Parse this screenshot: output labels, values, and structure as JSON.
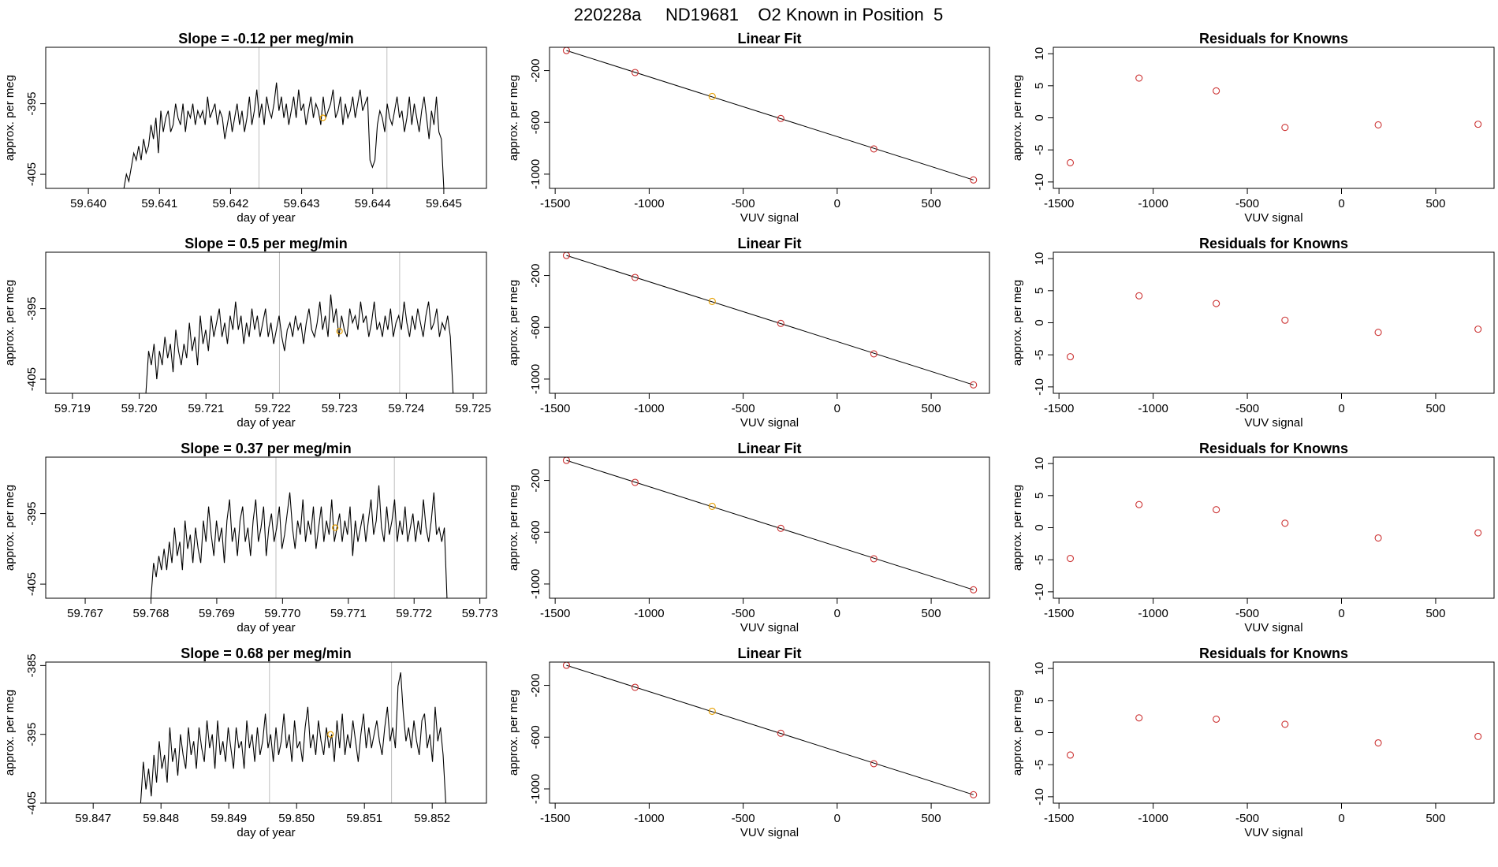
{
  "figure": {
    "title": "220228a     ND19681    O2 Known in Position  5"
  },
  "colors": {
    "line": "#000000",
    "point": "#cc3333",
    "highlight": "#e69f00",
    "vline": "#bebebe"
  },
  "chart_data": [
    {
      "type": "line",
      "row": 0,
      "col": 0,
      "title": "Slope =  -0.12  per meg/min",
      "xlabel": "day of year",
      "ylabel": "approx. per meg",
      "xlim": [
        59.6394,
        59.6456
      ],
      "ylim": [
        -407,
        -387
      ],
      "xticks": [
        59.64,
        59.641,
        59.642,
        59.643,
        59.644,
        59.645
      ],
      "xtick_labels": [
        "59.640",
        "59.641",
        "59.642",
        "59.643",
        "59.644",
        "59.645"
      ],
      "yticks": [
        -395,
        -405
      ],
      "ytick_labels": [
        "-395",
        "-405"
      ],
      "vlines": [
        59.6424,
        59.6442
      ],
      "highlight_point": [
        59.6433,
        -397.0
      ],
      "x_start": 59.6405,
      "x_end": 59.645,
      "y": [
        -407,
        -405,
        -406,
        -404,
        -402,
        -403,
        -401,
        -403,
        -400,
        -402,
        -401,
        -398,
        -400,
        -397,
        -402,
        -396,
        -399,
        -397,
        -396,
        -399,
        -398,
        -395,
        -397,
        -398,
        -395,
        -399,
        -396,
        -397,
        -395,
        -398,
        -396,
        -397,
        -396,
        -398,
        -394,
        -397,
        -396,
        -395,
        -398,
        -396,
        -397,
        -400,
        -398,
        -396,
        -399,
        -397,
        -395,
        -398,
        -396,
        -399,
        -397,
        -394,
        -398,
        -396,
        -393,
        -397,
        -395,
        -398,
        -394,
        -396,
        -397,
        -395,
        -392,
        -396,
        -394,
        -397,
        -395,
        -398,
        -396,
        -394,
        -397,
        -393,
        -396,
        -395,
        -398,
        -396,
        -394,
        -397,
        -395,
        -396,
        -398,
        -394,
        -397,
        -396,
        -395,
        -393,
        -397,
        -396,
        -394,
        -398,
        -395,
        -397,
        -396,
        -394,
        -397,
        -395,
        -393,
        -396,
        -395,
        -394,
        -403,
        -404,
        -403,
        -398,
        -396,
        -397,
        -399,
        -395,
        -397,
        -398,
        -396,
        -394,
        -397,
        -396,
        -399,
        -397,
        -394,
        -398,
        -395,
        -397,
        -399,
        -396,
        -394,
        -397,
        -400,
        -396,
        -398,
        -394,
        -399,
        -400,
        -407
      ]
    },
    {
      "type": "scatter",
      "row": 0,
      "col": 1,
      "title": "Linear Fit",
      "xlabel": "VUV signal",
      "ylabel": "approx. per meg",
      "xlim": [
        -1530,
        810
      ],
      "ylim": [
        -1110,
        -20
      ],
      "xticks": [
        -1500,
        -1000,
        -500,
        0,
        500
      ],
      "xtick_labels": [
        "-1500",
        "-1000",
        "-500",
        "0",
        "500"
      ],
      "yticks": [
        -200,
        -600,
        -1000
      ],
      "ytick_labels": [
        "-200",
        "-600",
        "-1000"
      ],
      "x": [
        -1440,
        -1075,
        -665,
        -300,
        195,
        725
      ],
      "y": [
        -45,
        -215,
        -400,
        -570,
        -805,
        -1045
      ],
      "highlight_index": 2,
      "fit": {
        "x": [
          -1440,
          725
        ],
        "y": [
          -45,
          -1045
        ]
      }
    },
    {
      "type": "scatter",
      "row": 0,
      "col": 2,
      "title": "Residuals for Knowns",
      "xlabel": "VUV signal",
      "ylabel": "approx. per meg",
      "xlim": [
        -1530,
        810
      ],
      "ylim": [
        -11,
        11
      ],
      "xticks": [
        -1500,
        -1000,
        -500,
        0,
        500
      ],
      "xtick_labels": [
        "-1500",
        "-1000",
        "-500",
        "0",
        "500"
      ],
      "yticks": [
        10,
        5,
        0,
        -5,
        -10
      ],
      "ytick_labels": [
        "10",
        "5",
        "0",
        "-5",
        "-10"
      ],
      "x": [
        -1440,
        -1075,
        -665,
        -300,
        195,
        725
      ],
      "y": [
        -7.0,
        6.2,
        4.2,
        -1.5,
        -1.1,
        -1.0
      ]
    },
    {
      "type": "line",
      "row": 1,
      "col": 0,
      "title": "Slope =  0.5  per meg/min",
      "xlabel": "day of year",
      "ylabel": "approx. per meg",
      "xlim": [
        59.7186,
        59.7252
      ],
      "ylim": [
        -407,
        -387
      ],
      "xticks": [
        59.719,
        59.72,
        59.721,
        59.722,
        59.723,
        59.724,
        59.725
      ],
      "xtick_labels": [
        "59.719",
        "59.720",
        "59.721",
        "59.722",
        "59.723",
        "59.724",
        "59.725"
      ],
      "yticks": [
        -395,
        -405
      ],
      "ytick_labels": [
        "-395",
        "-405"
      ],
      "vlines": [
        59.7221,
        59.7239
      ],
      "highlight_point": [
        59.723,
        -398.2
      ],
      "x_start": 59.7201,
      "x_end": 59.7247,
      "y": [
        -407,
        -401,
        -403,
        -400,
        -405,
        -401,
        -403,
        -399,
        -402,
        -400,
        -404,
        -398,
        -401,
        -403,
        -400,
        -402,
        -397,
        -401,
        -399,
        -403,
        -396,
        -400,
        -398,
        -401,
        -396,
        -399,
        -397,
        -395,
        -399,
        -397,
        -400,
        -396,
        -398,
        -394,
        -398,
        -396,
        -400,
        -397,
        -399,
        -395,
        -398,
        -396,
        -399,
        -397,
        -395,
        -399,
        -397,
        -400,
        -398,
        -396,
        -399,
        -401,
        -398,
        -397,
        -399,
        -396,
        -398,
        -397,
        -400,
        -397,
        -395,
        -398,
        -399,
        -397,
        -394,
        -398,
        -396,
        -399,
        -393,
        -397,
        -395,
        -399,
        -396,
        -398,
        -399,
        -395,
        -397,
        -396,
        -398,
        -394,
        -397,
        -396,
        -399,
        -397,
        -394,
        -398,
        -397,
        -399,
        -396,
        -398,
        -395,
        -399,
        -397,
        -396,
        -398,
        -394,
        -397,
        -399,
        -396,
        -398,
        -395,
        -397,
        -399,
        -396,
        -394,
        -398,
        -397,
        -395,
        -399,
        -397,
        -398,
        -396,
        -399,
        -407
      ]
    },
    {
      "type": "scatter",
      "row": 1,
      "col": 1,
      "title": "Linear Fit",
      "xlabel": "VUV signal",
      "ylabel": "approx. per meg",
      "xlim": [
        -1530,
        810
      ],
      "ylim": [
        -1110,
        -20
      ],
      "xticks": [
        -1500,
        -1000,
        -500,
        0,
        500
      ],
      "xtick_labels": [
        "-1500",
        "-1000",
        "-500",
        "0",
        "500"
      ],
      "yticks": [
        -200,
        -600,
        -1000
      ],
      "ytick_labels": [
        "-200",
        "-600",
        "-1000"
      ],
      "x": [
        -1440,
        -1075,
        -665,
        -300,
        195,
        725
      ],
      "y": [
        -45,
        -215,
        -400,
        -570,
        -805,
        -1045
      ],
      "highlight_index": 2,
      "fit": {
        "x": [
          -1440,
          725
        ],
        "y": [
          -45,
          -1045
        ]
      }
    },
    {
      "type": "scatter",
      "row": 1,
      "col": 2,
      "title": "Residuals for Knowns",
      "xlabel": "VUV signal",
      "ylabel": "approx. per meg",
      "xlim": [
        -1530,
        810
      ],
      "ylim": [
        -11,
        11
      ],
      "xticks": [
        -1500,
        -1000,
        -500,
        0,
        500
      ],
      "xtick_labels": [
        "-1500",
        "-1000",
        "-500",
        "0",
        "500"
      ],
      "yticks": [
        10,
        5,
        0,
        -5,
        -10
      ],
      "ytick_labels": [
        "10",
        "5",
        "0",
        "-5",
        "-10"
      ],
      "x": [
        -1440,
        -1075,
        -665,
        -300,
        195,
        725
      ],
      "y": [
        -5.3,
        4.2,
        3.0,
        0.4,
        -1.5,
        -1.0
      ]
    },
    {
      "type": "line",
      "row": 2,
      "col": 0,
      "title": "Slope =  0.37  per meg/min",
      "xlabel": "day of year",
      "ylabel": "approx. per meg",
      "xlim": [
        59.7664,
        59.7731
      ],
      "ylim": [
        -407,
        -387
      ],
      "xticks": [
        59.767,
        59.768,
        59.769,
        59.77,
        59.771,
        59.772,
        59.773
      ],
      "xtick_labels": [
        "59.767",
        "59.768",
        "59.769",
        "59.770",
        "59.771",
        "59.772",
        "59.773"
      ],
      "yticks": [
        -395,
        -405
      ],
      "ytick_labels": [
        "-395",
        "-405"
      ],
      "vlines": [
        59.7699,
        59.7717
      ],
      "highlight_point": [
        59.7708,
        -397.0
      ],
      "x_start": 59.768,
      "x_end": 59.7725,
      "y": [
        -407,
        -402,
        -404,
        -401,
        -403,
        -400,
        -403,
        -399,
        -402,
        -397,
        -401,
        -399,
        -403,
        -396,
        -400,
        -398,
        -402,
        -397,
        -400,
        -402,
        -396,
        -399,
        -394,
        -398,
        -401,
        -396,
        -399,
        -397,
        -402,
        -396,
        -393,
        -399,
        -397,
        -401,
        -396,
        -394,
        -399,
        -397,
        -401,
        -396,
        -393,
        -399,
        -397,
        -394,
        -401,
        -397,
        -395,
        -399,
        -397,
        -394,
        -400,
        -398,
        -395,
        -392,
        -397,
        -400,
        -396,
        -398,
        -393,
        -399,
        -396,
        -398,
        -394,
        -400,
        -397,
        -394,
        -399,
        -396,
        -398,
        -393,
        -399,
        -397,
        -395,
        -399,
        -396,
        -398,
        -394,
        -401,
        -396,
        -399,
        -397,
        -395,
        -399,
        -396,
        -393,
        -398,
        -396,
        -391,
        -397,
        -399,
        -394,
        -398,
        -396,
        -393,
        -399,
        -396,
        -398,
        -394,
        -399,
        -397,
        -395,
        -399,
        -396,
        -398,
        -393,
        -397,
        -399,
        -396,
        -392,
        -398,
        -397,
        -399,
        -397,
        -407
      ]
    },
    {
      "type": "scatter",
      "row": 2,
      "col": 1,
      "title": "Linear Fit",
      "xlabel": "VUV signal",
      "ylabel": "approx. per meg",
      "xlim": [
        -1530,
        810
      ],
      "ylim": [
        -1110,
        -20
      ],
      "xticks": [
        -1500,
        -1000,
        -500,
        0,
        500
      ],
      "xtick_labels": [
        "-1500",
        "-1000",
        "-500",
        "0",
        "500"
      ],
      "yticks": [
        -200,
        -600,
        -1000
      ],
      "ytick_labels": [
        "-200",
        "-600",
        "-1000"
      ],
      "x": [
        -1440,
        -1075,
        -665,
        -300,
        195,
        725
      ],
      "y": [
        -45,
        -215,
        -400,
        -570,
        -805,
        -1045
      ],
      "highlight_index": 2,
      "fit": {
        "x": [
          -1440,
          725
        ],
        "y": [
          -45,
          -1045
        ]
      }
    },
    {
      "type": "scatter",
      "row": 2,
      "col": 2,
      "title": "Residuals for Knowns",
      "xlabel": "VUV signal",
      "ylabel": "approx. per meg",
      "xlim": [
        -1530,
        810
      ],
      "ylim": [
        -11,
        11
      ],
      "xticks": [
        -1500,
        -1000,
        -500,
        0,
        500
      ],
      "xtick_labels": [
        "-1500",
        "-1000",
        "-500",
        "0",
        "500"
      ],
      "yticks": [
        10,
        5,
        0,
        -5,
        -10
      ],
      "ytick_labels": [
        "10",
        "5",
        "0",
        "-5",
        "-10"
      ],
      "x": [
        -1440,
        -1075,
        -665,
        -300,
        195,
        725
      ],
      "y": [
        -4.8,
        3.6,
        2.8,
        0.7,
        -1.6,
        -0.8
      ]
    },
    {
      "type": "line",
      "row": 3,
      "col": 0,
      "title": "Slope =  0.68  per meg/min",
      "xlabel": "day of year",
      "ylabel": "approx. per meg",
      "xlim": [
        59.8463,
        59.8528
      ],
      "ylim": [
        -405,
        -384.5
      ],
      "xticks": [
        59.847,
        59.848,
        59.849,
        59.85,
        59.851,
        59.852
      ],
      "xtick_labels": [
        "59.847",
        "59.848",
        "59.849",
        "59.850",
        "59.851",
        "59.852"
      ],
      "yticks": [
        -385,
        -395,
        -405
      ],
      "ytick_labels": [
        "-385",
        "-395",
        "-405"
      ],
      "vlines": [
        59.8496,
        59.8514
      ],
      "highlight_point": [
        59.8505,
        -395.0
      ],
      "x_start": 59.8477,
      "x_end": 59.8522,
      "y": [
        -405,
        -399,
        -403,
        -400,
        -404,
        -398,
        -402,
        -396,
        -400,
        -398,
        -402,
        -394,
        -399,
        -397,
        -401,
        -395,
        -398,
        -400,
        -394,
        -398,
        -396,
        -400,
        -394,
        -397,
        -399,
        -393,
        -397,
        -395,
        -400,
        -393,
        -398,
        -396,
        -399,
        -394,
        -397,
        -400,
        -394,
        -397,
        -396,
        -400,
        -393,
        -397,
        -395,
        -399,
        -394,
        -398,
        -396,
        -392,
        -397,
        -395,
        -399,
        -394,
        -398,
        -396,
        -392,
        -397,
        -395,
        -399,
        -393,
        -397,
        -396,
        -399,
        -394,
        -391,
        -397,
        -395,
        -398,
        -393,
        -396,
        -398,
        -394,
        -397,
        -395,
        -399,
        -393,
        -397,
        -392,
        -398,
        -395,
        -397,
        -393,
        -396,
        -399,
        -395,
        -392,
        -397,
        -394,
        -397,
        -395,
        -393,
        -396,
        -398,
        -394,
        -391,
        -396,
        -394,
        -397,
        -388,
        -386,
        -392,
        -396,
        -394,
        -397,
        -393,
        -396,
        -398,
        -393,
        -392,
        -397,
        -395,
        -399,
        -391,
        -396,
        -394,
        -398,
        -405
      ]
    },
    {
      "type": "scatter",
      "row": 3,
      "col": 1,
      "title": "Linear Fit",
      "xlabel": "VUV signal",
      "ylabel": "approx. per meg",
      "xlim": [
        -1530,
        810
      ],
      "ylim": [
        -1110,
        -20
      ],
      "xticks": [
        -1500,
        -1000,
        -500,
        0,
        500
      ],
      "xtick_labels": [
        "-1500",
        "-1000",
        "-500",
        "0",
        "500"
      ],
      "yticks": [
        -200,
        -600,
        -1000
      ],
      "ytick_labels": [
        "-200",
        "-600",
        "-1000"
      ],
      "x": [
        -1440,
        -1075,
        -665,
        -300,
        195,
        725
      ],
      "y": [
        -45,
        -215,
        -400,
        -570,
        -805,
        -1045
      ],
      "highlight_index": 2,
      "fit": {
        "x": [
          -1440,
          725
        ],
        "y": [
          -45,
          -1045
        ]
      }
    },
    {
      "type": "scatter",
      "row": 3,
      "col": 2,
      "title": "Residuals for Knowns",
      "xlabel": "VUV signal",
      "ylabel": "approx. per meg",
      "xlim": [
        -1530,
        810
      ],
      "ylim": [
        -11,
        11
      ],
      "xticks": [
        -1500,
        -1000,
        -500,
        0,
        500
      ],
      "xtick_labels": [
        "-1500",
        "-1000",
        "-500",
        "0",
        "500"
      ],
      "yticks": [
        10,
        5,
        0,
        -5,
        -10
      ],
      "ytick_labels": [
        "10",
        "5",
        "0",
        "-5",
        "-10"
      ],
      "x": [
        -1440,
        -1075,
        -665,
        -300,
        195,
        725
      ],
      "y": [
        -3.5,
        2.3,
        2.1,
        1.3,
        -1.6,
        -0.6
      ]
    }
  ]
}
